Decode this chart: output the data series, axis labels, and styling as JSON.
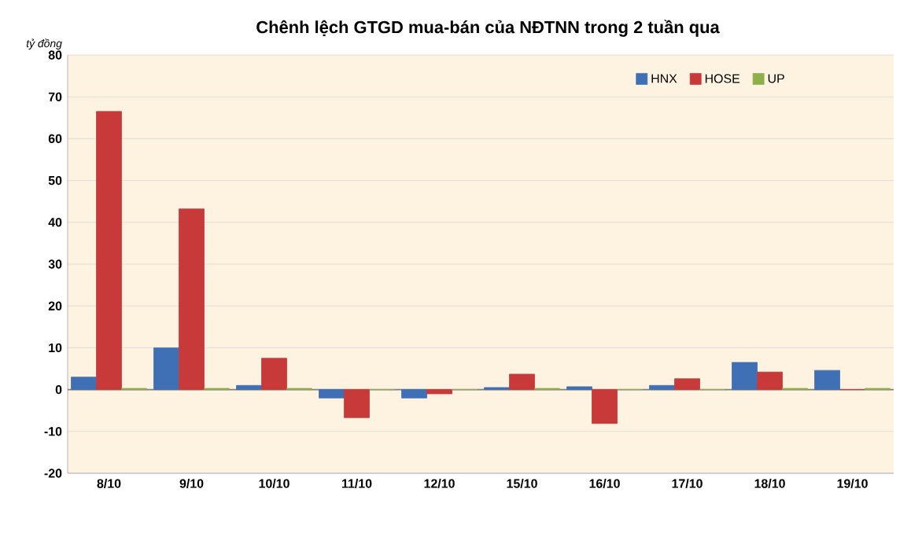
{
  "chart_data": {
    "type": "bar",
    "title": "Chênh lệch GTGD mua-bán của NĐTNN trong 2 tuần qua",
    "ylabel": "tỷ đồng",
    "categories": [
      "8/10",
      "9/10",
      "10/10",
      "11/10",
      "12/10",
      "15/10",
      "16/10",
      "17/10",
      "18/10",
      "19/10"
    ],
    "series": [
      {
        "name": "HNX",
        "color": "#3f6fb5",
        "values": [
          3,
          10,
          1,
          -2,
          -2,
          0.5,
          0.7,
          1,
          6.5,
          4.6
        ]
      },
      {
        "name": "HOSE",
        "color": "#c83a3a",
        "values": [
          66.5,
          43.2,
          7.5,
          -6.7,
          -1,
          3.7,
          -8.1,
          2.6,
          4.2,
          0
        ]
      },
      {
        "name": "UP",
        "color": "#8db04a",
        "values": [
          0.3,
          0.3,
          0.3,
          0,
          0,
          0.3,
          0,
          0,
          0.3,
          0.3
        ]
      }
    ],
    "ylim": [
      -20,
      80
    ],
    "yticks": [
      -20,
      -10,
      0,
      10,
      20,
      30,
      40,
      50,
      60,
      70,
      80
    ],
    "grid": "y",
    "legend": "top right"
  }
}
